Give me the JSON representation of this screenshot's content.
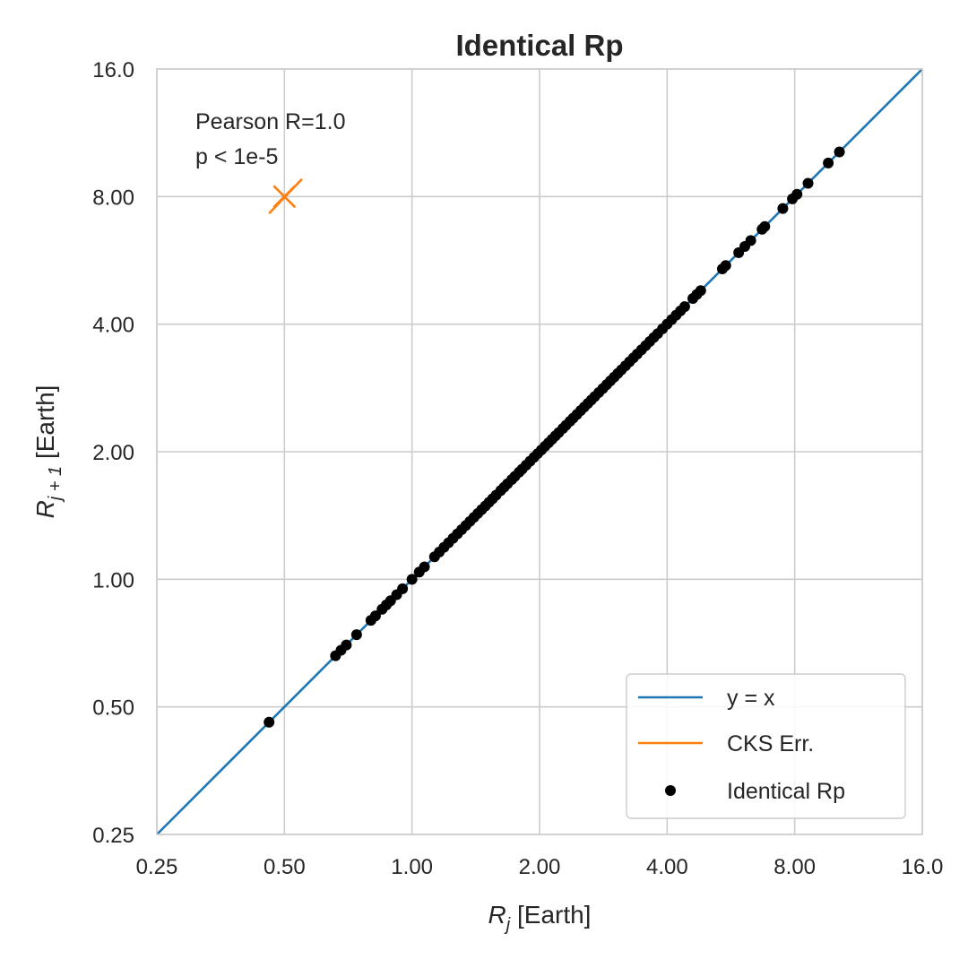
{
  "chart_data": {
    "type": "scatter",
    "title": "Identical Rp",
    "xlabel_main": "R",
    "xlabel_sub": "j",
    "xlabel_suffix": " [Earth]",
    "ylabel_main": "R",
    "ylabel_sub": "j + 1",
    "ylabel_suffix": " [Earth]",
    "xscale": "log2",
    "yscale": "log2",
    "xlim": [
      0.25,
      16.0
    ],
    "ylim": [
      0.25,
      16.0
    ],
    "grid": true,
    "xticks": [
      0.25,
      0.5,
      1.0,
      2.0,
      4.0,
      8.0,
      16.0
    ],
    "xtick_labels": [
      "0.25",
      "0.50",
      "1.00",
      "2.00",
      "4.00",
      "8.00",
      "16.0"
    ],
    "yticks": [
      0.25,
      0.5,
      1.0,
      2.0,
      4.0,
      8.0,
      16.0
    ],
    "ytick_labels": [
      "0.25",
      "0.50",
      "1.00",
      "2.00",
      "4.00",
      "8.00",
      "16.0"
    ],
    "annotation_lines": [
      "Pearson R=1.0",
      "p < 1e-5"
    ],
    "annotation_position": "top-left",
    "legend_position": "bottom-right",
    "legend": [
      {
        "label": "y = x",
        "kind": "line",
        "color": "#1f77b4"
      },
      {
        "label": "CKS Err.",
        "kind": "line",
        "color": "#ff7f0e"
      },
      {
        "label": "Identical Rp",
        "kind": "marker",
        "color": "#000000"
      }
    ],
    "identity_line": {
      "name": "y = x",
      "color": "#1f77b4",
      "from": 0.25,
      "to": 16.0
    },
    "error_marker": {
      "name": "CKS Err.",
      "color": "#ff7f0e",
      "center": [
        0.5,
        8.0
      ],
      "segment_x": [
        0.46,
        0.55
      ],
      "segment_y": [
        7.3,
        8.8
      ]
    },
    "series": [
      {
        "name": "Identical Rp",
        "color": "#000000",
        "x": [
          0.46,
          0.66,
          0.68,
          0.7,
          0.74,
          0.8,
          0.82,
          0.85,
          0.87,
          0.89,
          0.92,
          0.95,
          1.0,
          1.04,
          1.07,
          1.13,
          1.16,
          1.19,
          1.22,
          1.25,
          1.28,
          1.31,
          1.34,
          1.37,
          1.4,
          1.43,
          1.46,
          1.49,
          1.52,
          1.55,
          1.58,
          1.62,
          1.65,
          1.68,
          1.72,
          1.75,
          1.79,
          1.82,
          1.86,
          1.9,
          1.94,
          1.98,
          2.02,
          2.06,
          2.1,
          2.14,
          2.18,
          2.22,
          2.27,
          2.31,
          2.36,
          2.4,
          2.45,
          2.5,
          2.55,
          2.6,
          2.65,
          2.7,
          2.76,
          2.82,
          2.88,
          2.94,
          3.0,
          3.06,
          3.12,
          3.19,
          3.26,
          3.33,
          3.4,
          3.48,
          3.56,
          3.64,
          3.72,
          3.8,
          3.9,
          4.0,
          4.1,
          4.2,
          4.3,
          4.4,
          4.6,
          4.7,
          4.8,
          5.4,
          5.5,
          5.9,
          6.1,
          6.3,
          6.7,
          6.8,
          7.5,
          7.9,
          8.1,
          8.6,
          9.6,
          10.2
        ],
        "y": [
          0.46,
          0.66,
          0.68,
          0.7,
          0.74,
          0.8,
          0.82,
          0.85,
          0.87,
          0.89,
          0.92,
          0.95,
          1.0,
          1.04,
          1.07,
          1.13,
          1.16,
          1.19,
          1.22,
          1.25,
          1.28,
          1.31,
          1.34,
          1.37,
          1.4,
          1.43,
          1.46,
          1.49,
          1.52,
          1.55,
          1.58,
          1.62,
          1.65,
          1.68,
          1.72,
          1.75,
          1.79,
          1.82,
          1.86,
          1.9,
          1.94,
          1.98,
          2.02,
          2.06,
          2.1,
          2.14,
          2.18,
          2.22,
          2.27,
          2.31,
          2.36,
          2.4,
          2.45,
          2.5,
          2.55,
          2.6,
          2.65,
          2.7,
          2.76,
          2.82,
          2.88,
          2.94,
          3.0,
          3.06,
          3.12,
          3.19,
          3.26,
          3.33,
          3.4,
          3.48,
          3.56,
          3.64,
          3.72,
          3.8,
          3.9,
          4.0,
          4.1,
          4.2,
          4.3,
          4.4,
          4.6,
          4.7,
          4.8,
          5.4,
          5.5,
          5.9,
          6.1,
          6.3,
          6.7,
          6.8,
          7.5,
          7.9,
          8.1,
          8.6,
          9.6,
          10.2
        ]
      }
    ]
  }
}
